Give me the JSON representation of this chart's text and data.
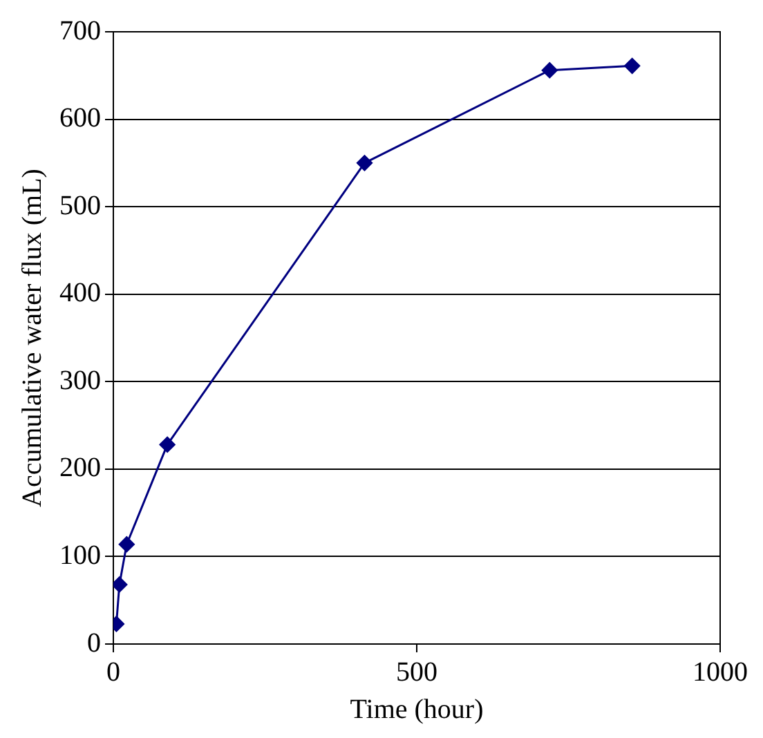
{
  "chart_data": {
    "type": "line",
    "xlabel": "Time (hour)",
    "ylabel": "Accumulative water flux (mL)",
    "x": [
      5,
      10,
      22,
      89,
      414,
      719,
      855
    ],
    "series": [
      {
        "color": "#000080",
        "values": [
          23,
          68,
          114,
          228,
          550,
          656,
          661
        ]
      }
    ],
    "xlim": [
      0,
      1000
    ],
    "xticks": [
      0,
      500,
      1000
    ],
    "ylim": [
      0,
      700
    ],
    "yticks": [
      0,
      100,
      200,
      300,
      400,
      500,
      600,
      700
    ],
    "grid": "y",
    "legend": false,
    "marker": "diamond",
    "line_style": "solid"
  }
}
